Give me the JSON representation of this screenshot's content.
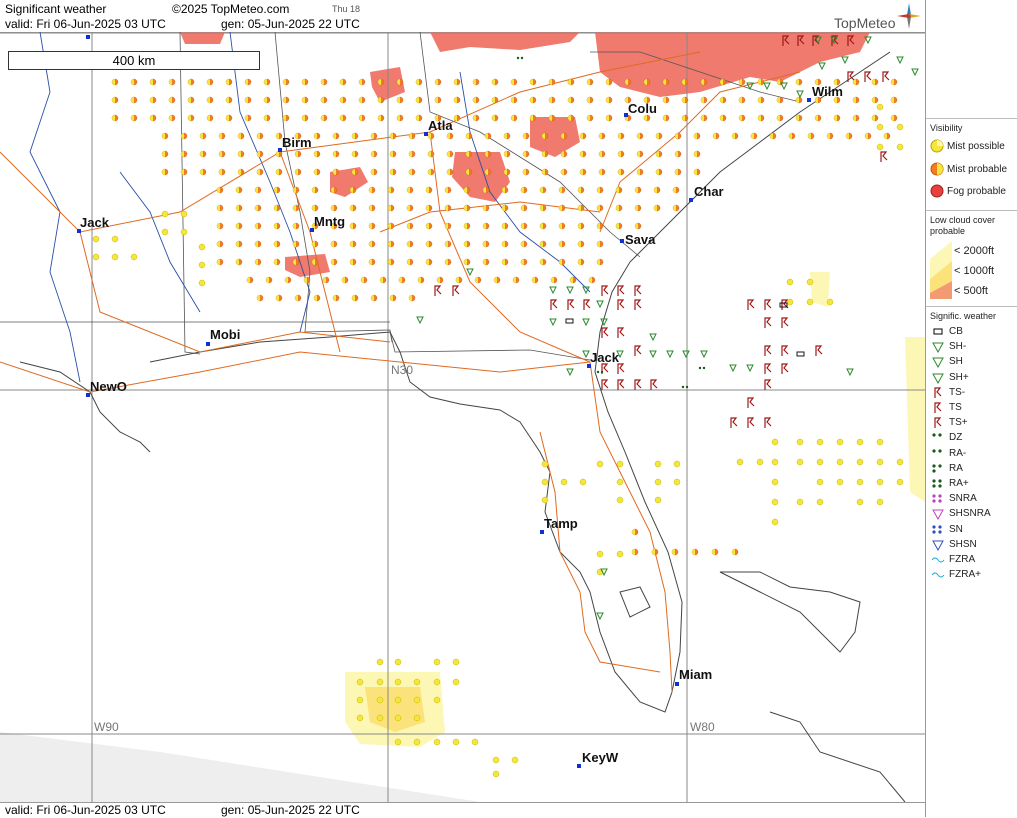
{
  "header": {
    "product": "Significant weather",
    "copyright": "©2025 TopMeteo.com",
    "day_tag": "Thu 18",
    "valid": "valid:  Fri  06-Jun-2025  03 UTC",
    "gen": "gen:  05-Jun-2025  22 UTC",
    "logo": "TopMeteo"
  },
  "footer": {
    "valid": "valid:  Fri  06-Jun-2025  03 UTC",
    "gen": "gen:  05-Jun-2025  22 UTC"
  },
  "scale_label": "400 km",
  "grid_labels": {
    "w90": "W90",
    "w80": "W80",
    "n30": "N30"
  },
  "cities": [
    {
      "id": "birm",
      "label": "Birm"
    },
    {
      "id": "atla",
      "label": "Atla"
    },
    {
      "id": "colu",
      "label": "Colu"
    },
    {
      "id": "wilm",
      "label": "Wilm"
    },
    {
      "id": "char",
      "label": "Char"
    },
    {
      "id": "sava",
      "label": "Sava"
    },
    {
      "id": "jack1",
      "label": "Jack"
    },
    {
      "id": "mntg",
      "label": "Mntg"
    },
    {
      "id": "mobi",
      "label": "Mobi"
    },
    {
      "id": "newo",
      "label": "NewO"
    },
    {
      "id": "jack2",
      "label": "Jack"
    },
    {
      "id": "tamp",
      "label": "Tamp"
    },
    {
      "id": "miam",
      "label": "Miam"
    },
    {
      "id": "keyw",
      "label": "KeyW"
    }
  ],
  "legend": {
    "visibility_title": "Visibility",
    "mist_possible": "Mist possible",
    "mist_probable": "Mist probable",
    "fog_probable": "Fog probable",
    "lowcloud_title_1": "Low cloud cover",
    "lowcloud_title_2": "probable",
    "lc_2000": "< 2000ft",
    "lc_1000": "< 1000ft",
    "lc_500": "<   500ft",
    "signif_title": "Signific. weather",
    "items": [
      "CB",
      "SH-",
      "SH",
      "SH+",
      "TS-",
      "TS",
      "TS+",
      "DZ",
      "RA-",
      "RA",
      "RA+",
      "SNRA",
      "SHSNRA",
      "SN",
      "SHSN",
      "FZRA",
      "FZRA+"
    ]
  },
  "colors": {
    "mist_possible": "#f5e63c",
    "mist_probable": "#f57c1e",
    "fog": "#e8403c",
    "fog_area": "#f07a6e",
    "lowcloud_2000": "#fdf7b5",
    "lowcloud_1000": "#fbe27a",
    "lowcloud_500": "#f29a72",
    "road": "#e06a20",
    "river": "#2a4fa8",
    "border": "#444",
    "ts": "#a01818",
    "sh": "#2a8a2a",
    "dz": "#1a5a1a"
  }
}
